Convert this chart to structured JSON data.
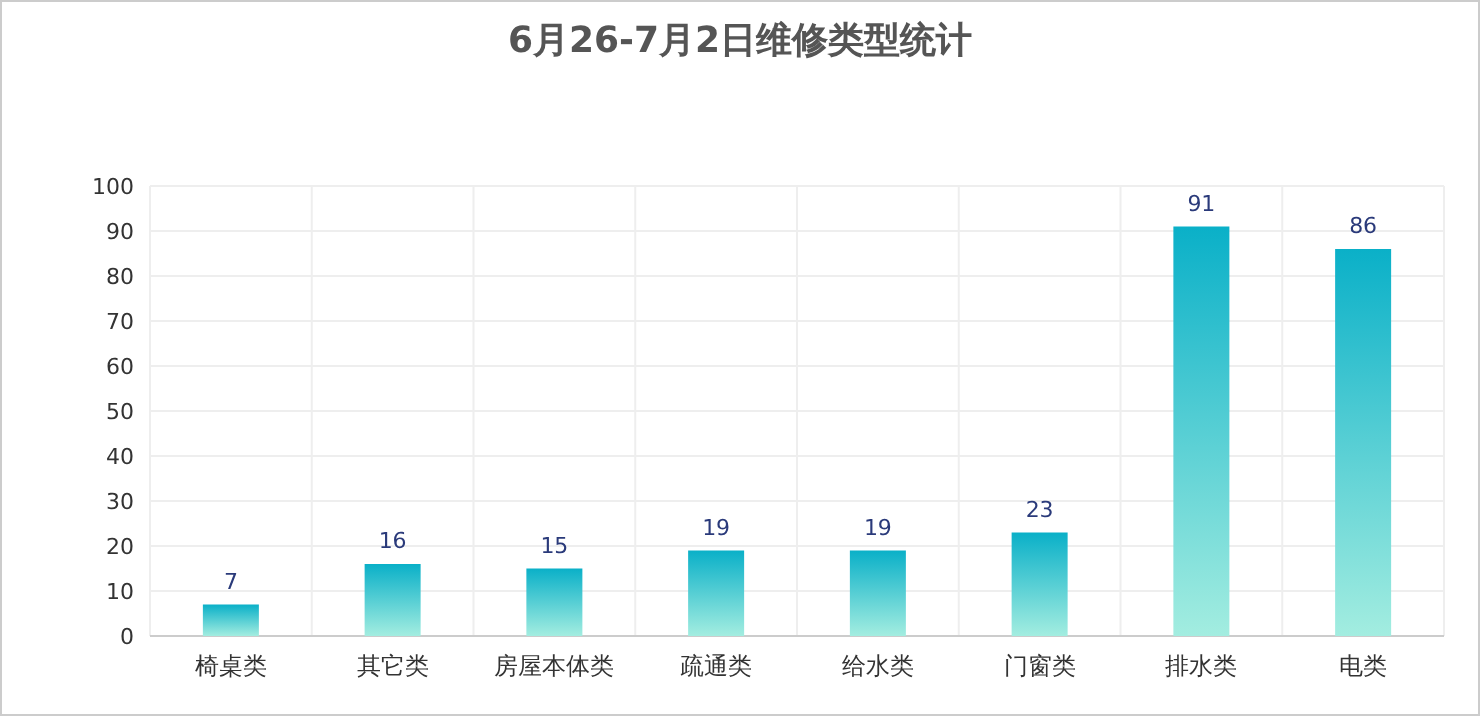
{
  "chart_data": {
    "type": "bar",
    "title": "6月26-7月2日维修类型统计",
    "categories": [
      "椅桌类",
      "其它类",
      "房屋本体类",
      "疏通类",
      "给水类",
      "门窗类",
      "排水类",
      "电类"
    ],
    "values": [
      7,
      16,
      15,
      19,
      19,
      23,
      91,
      86
    ],
    "color": "#0ab0c8",
    "ylim": [
      0,
      100
    ],
    "yticks": [
      0,
      10,
      20,
      30,
      40,
      50,
      60,
      70,
      80,
      90,
      100
    ],
    "grid": true,
    "data_labels": true
  }
}
